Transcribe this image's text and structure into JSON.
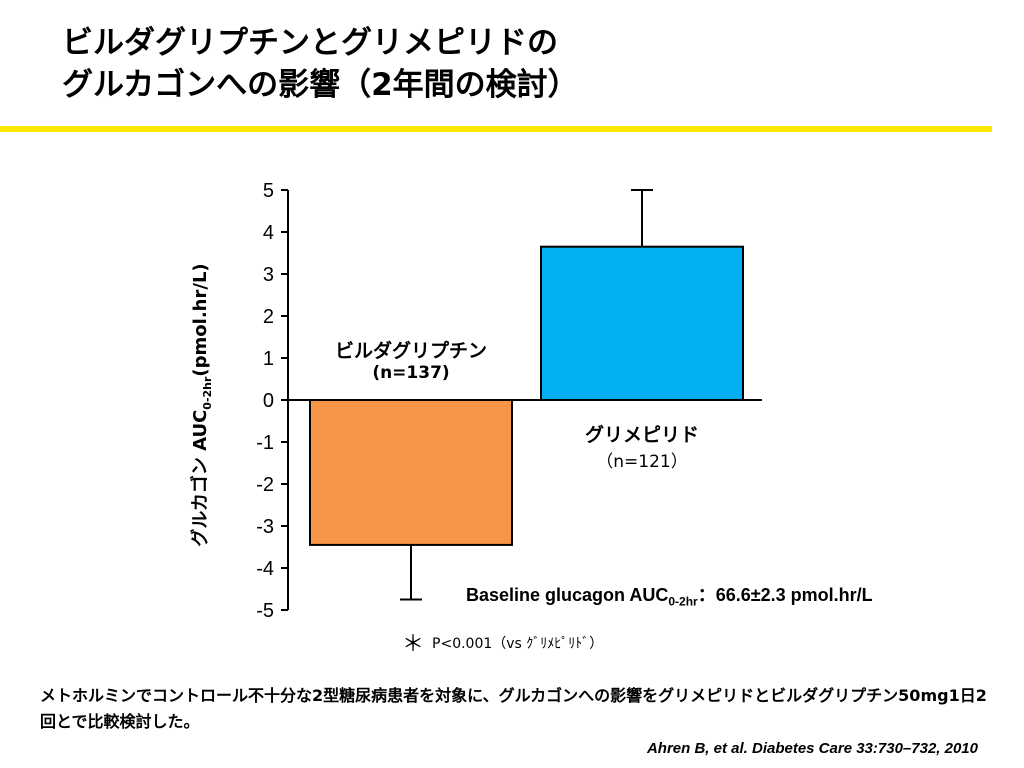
{
  "header": {
    "title_line1": "ビルダグリプチンとグリメピリドの",
    "title_line2": "グルカゴンへの影響（2年間の検討）"
  },
  "chart_data": {
    "type": "bar",
    "ylabel_main": "グルカゴン AUC",
    "ylabel_sub": "0-2hr",
    "ylabel_unit": "(pmol.hr/L)",
    "ylim": [
      -5,
      5
    ],
    "yticks": [
      "5",
      "4",
      "3",
      "2",
      "1",
      "0",
      "-1",
      "-2",
      "-3",
      "-4",
      "-5"
    ],
    "series": [
      {
        "name": "ビルダグリプチン",
        "n_label": "(n=137)",
        "value": -3.45,
        "error": 1.3,
        "color": "#f79646"
      },
      {
        "name": "グリメピリド",
        "n_label": "（n=121）",
        "value": 3.65,
        "error": 1.35,
        "color": "#00b0f0"
      }
    ],
    "annotation": {
      "marker": "＊",
      "text": "P<0.001（vs ｸﾞﾘﾒﾋﾟﾘﾄﾞ）"
    }
  },
  "baseline_note": {
    "prefix": "Baseline glucagon AUC",
    "sub": "0-2hr",
    "suffix": "：66.6±2.3 pmol.hr/L"
  },
  "description": "メトホルミンでコントロール不十分な2型糖尿病患者を対象に、グルカゴンへの影響をグリメピリドとビルダグリプチン50mg1日2回とで比較検討した。",
  "citation": "Ahren B, et al.  Diabetes Care 33:730–732, 2010"
}
